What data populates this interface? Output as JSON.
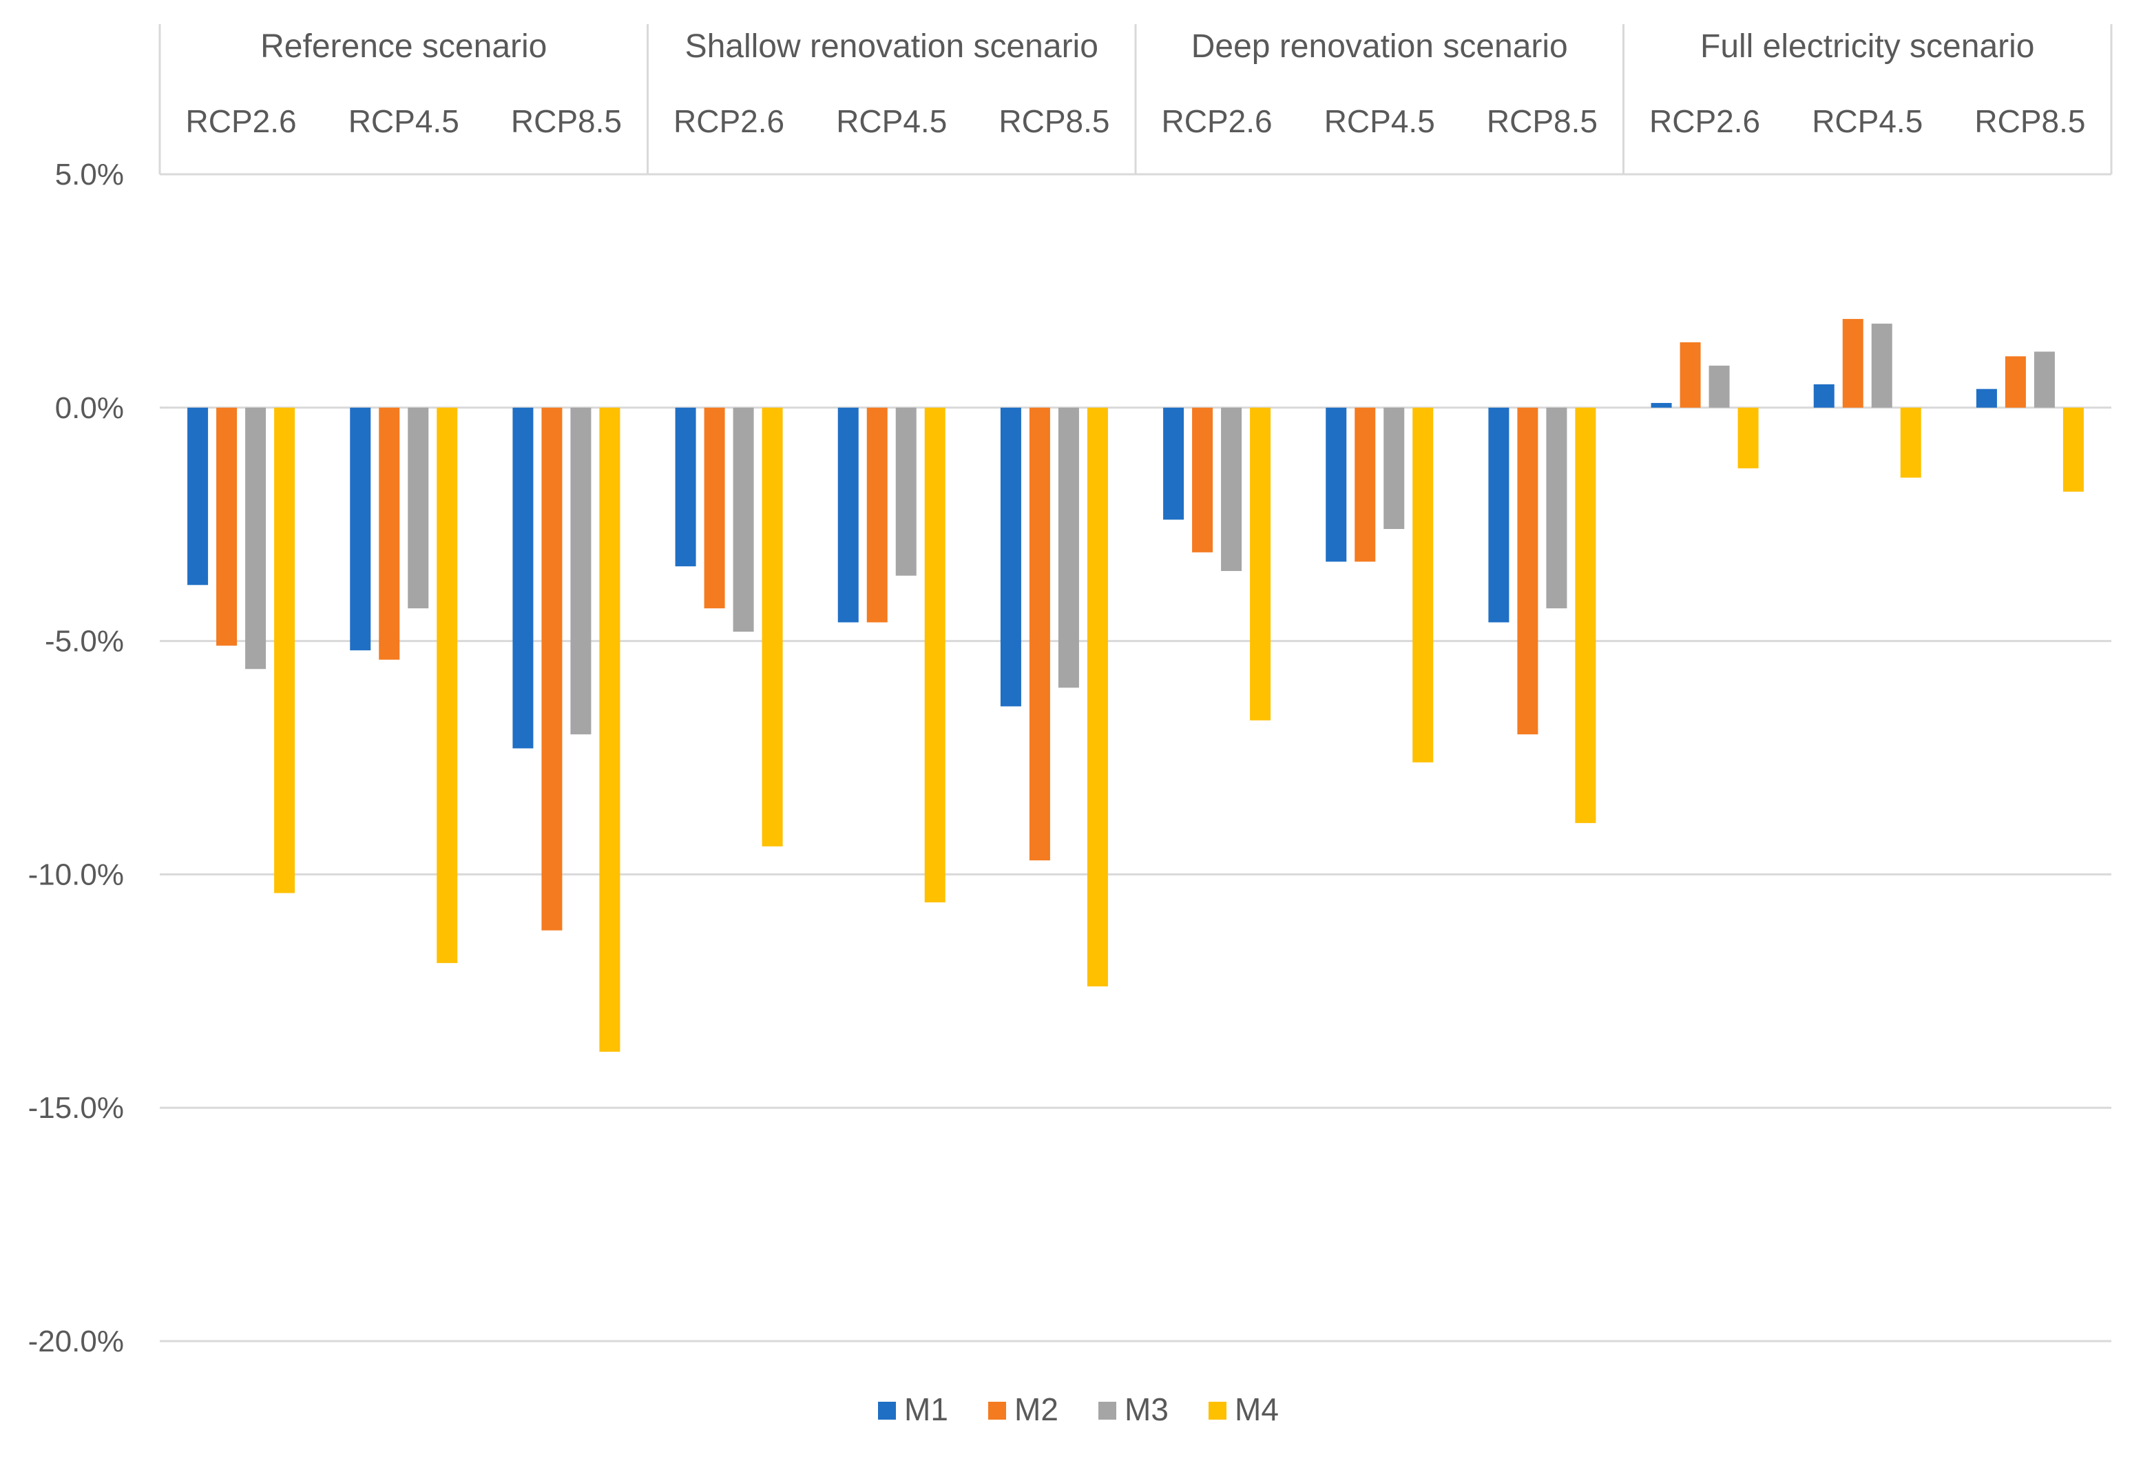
{
  "chart_data": {
    "type": "bar",
    "title": "",
    "xlabel": "",
    "ylabel": "",
    "ylim": [
      -20,
      5
    ],
    "y_ticks": [
      5,
      0,
      -5,
      -10,
      -15,
      -20
    ],
    "y_tick_labels": [
      "5.0%",
      "0.0%",
      "-5.0%",
      "-10.0%",
      "-15.0%",
      "-20.0%"
    ],
    "grid": true,
    "legend_position": "bottom",
    "groups": [
      {
        "name": "Reference scenario",
        "categories": [
          "RCP2.6",
          "RCP4.5",
          "RCP8.5"
        ]
      },
      {
        "name": "Shallow renovation scenario",
        "categories": [
          "RCP2.6",
          "RCP4.5",
          "RCP8.5"
        ]
      },
      {
        "name": "Deep renovation scenario",
        "categories": [
          "RCP2.6",
          "RCP4.5",
          "RCP8.5"
        ]
      },
      {
        "name": "Full electricity scenario",
        "categories": [
          "RCP2.6",
          "RCP4.5",
          "RCP8.5"
        ]
      }
    ],
    "series": [
      {
        "name": "M1",
        "color": "#1f6fc5",
        "values": [
          -3.8,
          -5.2,
          -7.3,
          -3.4,
          -4.6,
          -6.4,
          -2.4,
          -3.3,
          -4.6,
          0.1,
          0.5,
          0.4
        ]
      },
      {
        "name": "M2",
        "color": "#f47b20",
        "values": [
          -5.1,
          -5.4,
          -11.2,
          -4.3,
          -4.6,
          -9.7,
          -3.1,
          -3.3,
          -7.0,
          1.4,
          1.9,
          1.1
        ]
      },
      {
        "name": "M3",
        "color": "#a5a5a5",
        "values": [
          -5.6,
          -4.3,
          -7.0,
          -4.8,
          -3.6,
          -6.0,
          -3.5,
          -2.6,
          -4.3,
          0.9,
          1.8,
          1.2
        ]
      },
      {
        "name": "M4",
        "color": "#ffc000",
        "values": [
          -10.4,
          -11.9,
          -13.8,
          -9.4,
          -10.6,
          -12.4,
          -6.7,
          -7.6,
          -8.9,
          -1.3,
          -1.5,
          -1.8
        ]
      }
    ]
  }
}
